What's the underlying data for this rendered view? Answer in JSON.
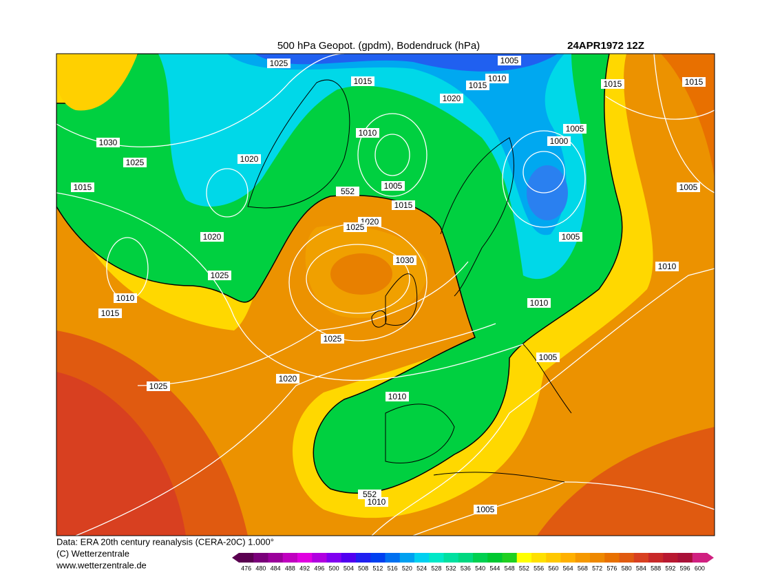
{
  "header": {
    "title": "500 hPa Geopot. (gpdm), Bodendruck (hPa)",
    "date": "24APR1972 12Z"
  },
  "map": {
    "contour_labels": [
      1025,
      1015,
      1005,
      1010,
      1015,
      1020,
      1015,
      1015,
      1030,
      1025,
      1020,
      1010,
      1005,
      1000,
      1015,
      552,
      1005,
      1015,
      1005,
      1020,
      1025,
      1020,
      1005,
      1030,
      1010,
      1025,
      1010,
      1010,
      1015,
      1025,
      1005,
      1020,
      1025,
      1010,
      552,
      1010,
      1005
    ]
  },
  "footer": {
    "source": "Data: ERA 20th century reanalysis (CERA-20C) 1.000°",
    "copyright": "(C) Wetterzentrale",
    "url": "www.wetterzentrale.de"
  },
  "colorbar": {
    "ticks": [
      476,
      480,
      484,
      488,
      492,
      496,
      500,
      504,
      508,
      512,
      516,
      520,
      524,
      528,
      532,
      536,
      540,
      544,
      548,
      552,
      556,
      560,
      564,
      568,
      572,
      576,
      580,
      584,
      588,
      592,
      596,
      600
    ],
    "colors": [
      "#5a0050",
      "#7a007a",
      "#9a009a",
      "#c000c0",
      "#e000e0",
      "#b000e0",
      "#8000f0",
      "#5000f0",
      "#2020f0",
      "#0040f0",
      "#0070f0",
      "#00a0f0",
      "#00d0f0",
      "#00e8c8",
      "#00e0a0",
      "#00d880",
      "#00d050",
      "#00c830",
      "#20d020",
      "#ffff00",
      "#ffe000",
      "#ffc800",
      "#ffb000",
      "#f59800",
      "#ee8800",
      "#e87000",
      "#e05a10",
      "#d84020",
      "#c82828",
      "#b81830",
      "#a81038",
      "#d02080"
    ]
  }
}
